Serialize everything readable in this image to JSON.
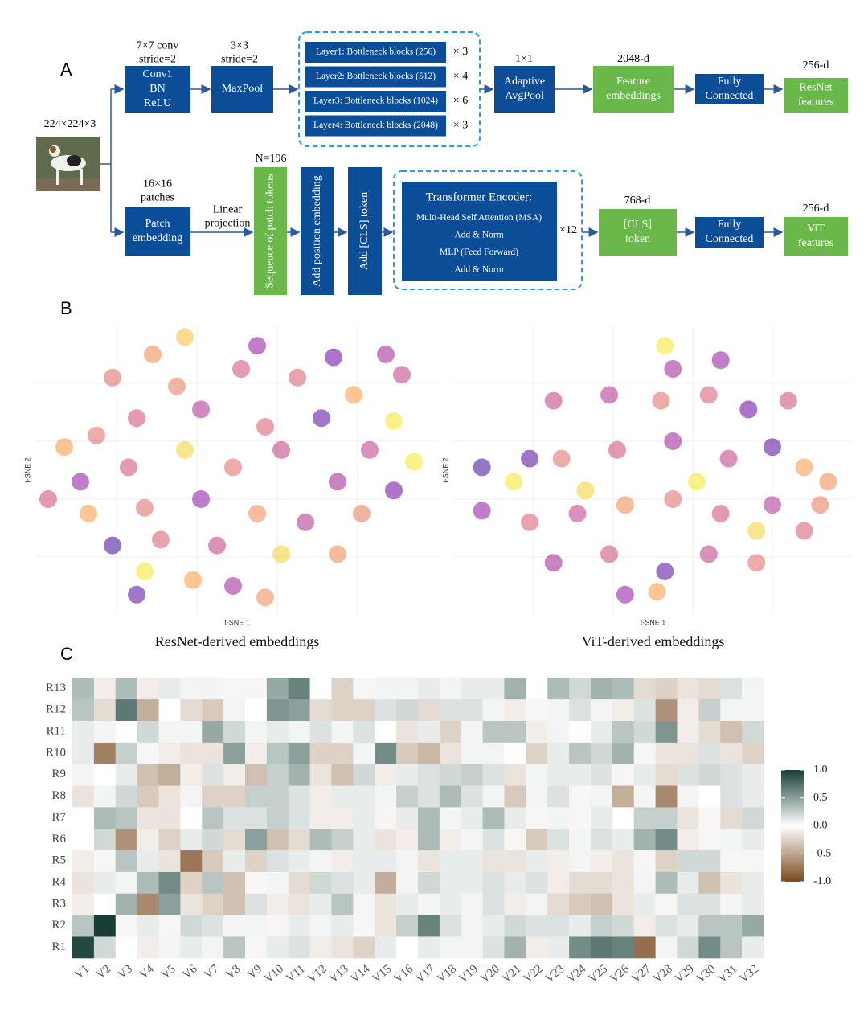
{
  "panel_labels": {
    "a": "A",
    "b": "B",
    "c": "C"
  },
  "diagram": {
    "input_size": "224×224×3",
    "resnet": {
      "conv_params": [
        "7×7 conv",
        "stride=2"
      ],
      "conv_box": [
        "Conv1",
        "BN",
        "ReLU"
      ],
      "pool_params": [
        "3×3",
        "stride=2"
      ],
      "pool_box": "MaxPool",
      "layers": [
        {
          "label": "Layer1: Bottleneck blocks (256)",
          "repeat": "× 3"
        },
        {
          "label": "Layer2: Bottleneck blocks (512)",
          "repeat": "× 4"
        },
        {
          "label": "Layer3: Bottleneck blocks (1024)",
          "repeat": "× 6"
        },
        {
          "label": "Layer4: Bottleneck blocks (2048)",
          "repeat": "× 3"
        }
      ],
      "avgpool_params": "1×1",
      "avgpool_box": [
        "Adaptive",
        "AvgPool"
      ],
      "embed_dim": "2048-d",
      "embed_box": [
        "Feature",
        "embeddings"
      ],
      "fc_box": [
        "Fully",
        "Connected"
      ],
      "out_dim": "256-d",
      "out_box": [
        "ResNet",
        "features"
      ]
    },
    "vit": {
      "patch_params": [
        "16×16",
        "patches"
      ],
      "patch_box": [
        "Patch",
        "embedding"
      ],
      "projection": [
        "Linear",
        "projection"
      ],
      "tokens": "N=196",
      "sequence_box": "Sequence of patch tokens",
      "position_box": "Add position embedding",
      "cls_add_box": "Add [CLS] token",
      "encoder": [
        "Transformer Encoder:",
        "Multi-Head Self Attention (MSA)",
        "Add & Norm",
        "MLP (Feed Forward)",
        "Add & Norm"
      ],
      "encoder_repeat": "×12",
      "embed_dim": "768-d",
      "cls_box": [
        "[CLS]",
        "token"
      ],
      "fc_box": [
        "Fully",
        "Connected"
      ],
      "out_dim": "256-d",
      "out_box": [
        "ViT",
        "features"
      ]
    }
  },
  "chart_data": [
    {
      "type": "scatter",
      "caption": "ResNet-derived embeddings",
      "xlabel": "t-SNE 1",
      "ylabel": "t-SNE 2",
      "colormap": "plasma",
      "xlim": [
        0,
        100
      ],
      "ylim": [
        0,
        100
      ],
      "x": [
        37,
        29,
        55,
        74,
        87,
        91,
        19,
        35,
        51,
        65,
        79,
        89,
        7,
        15,
        25,
        41,
        57,
        71,
        83,
        94,
        11,
        23,
        37,
        49,
        61,
        75,
        89,
        13,
        27,
        41,
        55,
        67,
        81,
        19,
        31,
        45,
        61,
        75,
        27,
        39,
        25,
        57,
        49,
        3
      ],
      "y": [
        96,
        90,
        93,
        89,
        90,
        83,
        82,
        79,
        85,
        82,
        76,
        67,
        58,
        62,
        68,
        71,
        65,
        68,
        57,
        53,
        46,
        51,
        57,
        51,
        57,
        46,
        43,
        35,
        37,
        40,
        35,
        32,
        35,
        24,
        26,
        24,
        21,
        21,
        15,
        12,
        7,
        6,
        10,
        40
      ],
      "color_values": [
        0.85,
        0.7,
        0.3,
        0.2,
        0.35,
        0.45,
        0.6,
        0.65,
        0.5,
        0.55,
        0.75,
        0.95,
        0.75,
        0.6,
        0.5,
        0.4,
        0.55,
        0.15,
        0.45,
        0.95,
        0.3,
        0.5,
        0.9,
        0.6,
        0.45,
        0.35,
        0.2,
        0.75,
        0.6,
        0.3,
        0.7,
        0.4,
        0.65,
        0.1,
        0.55,
        0.45,
        0.9,
        0.7,
        0.95,
        0.75,
        0.15,
        0.7,
        0.35,
        0.5
      ]
    },
    {
      "type": "scatter",
      "caption": "ViT-derived embeddings",
      "xlabel": "t-SNE 1",
      "ylabel": "t-SNE 2",
      "colormap": "plasma",
      "xlim": [
        0,
        100
      ],
      "ylim": [
        0,
        100
      ],
      "x": [
        53,
        55,
        67,
        25,
        39,
        52,
        64,
        74,
        84,
        7,
        15,
        27,
        41,
        55,
        69,
        80,
        88,
        94,
        7,
        19,
        31,
        43,
        55,
        67,
        80,
        92,
        25,
        39,
        53,
        64,
        76,
        43,
        51,
        33,
        61,
        76,
        88,
        19
      ],
      "y": [
        93,
        85,
        88,
        74,
        76,
        74,
        76,
        71,
        74,
        51,
        46,
        54,
        57,
        60,
        54,
        58,
        51,
        46,
        36,
        32,
        35,
        38,
        40,
        35,
        38,
        38,
        18,
        21,
        15,
        21,
        18,
        7,
        8,
        43,
        46,
        29,
        29,
        54
      ],
      "color_values": [
        0.95,
        0.35,
        0.3,
        0.45,
        0.4,
        0.6,
        0.55,
        0.2,
        0.5,
        0.1,
        0.95,
        0.6,
        0.5,
        0.35,
        0.45,
        0.15,
        0.75,
        0.7,
        0.3,
        0.55,
        0.45,
        0.7,
        0.6,
        0.5,
        0.4,
        0.65,
        0.35,
        0.5,
        0.15,
        0.45,
        0.6,
        0.3,
        0.75,
        0.9,
        0.95,
        0.9,
        0.55,
        0.15
      ]
    },
    {
      "type": "heatmap",
      "rows": [
        "R1",
        "R2",
        "R3",
        "R4",
        "R5",
        "R6",
        "R7",
        "R8",
        "R9",
        "R10",
        "R11",
        "R12",
        "R13"
      ],
      "columns": [
        "V1",
        "V2",
        "V3",
        "V4",
        "V5",
        "V6",
        "V7",
        "V8",
        "V9",
        "V10",
        "V11",
        "V12",
        "V13",
        "V14",
        "V15",
        "V16",
        "V17",
        "V18",
        "V19",
        "V20",
        "V21",
        "V22",
        "V23",
        "V24",
        "V25",
        "V26",
        "V27",
        "V28",
        "V29",
        "V30",
        "V31",
        "V32"
      ],
      "values": [
        [
          0.95,
          0.2,
          0,
          -0.1,
          0.05,
          0.1,
          0.05,
          0.3,
          -0.05,
          0.1,
          0.15,
          -0.1,
          -0.15,
          -0.25,
          0.1,
          0,
          0.1,
          0.05,
          0.05,
          0.15,
          0.4,
          -0.1,
          0.1,
          0.6,
          0.7,
          0.65,
          -0.8,
          0.05,
          0.2,
          0.6,
          0.3,
          0.1
        ],
        [
          0.3,
          1.0,
          -0.05,
          0.1,
          -0.05,
          0.2,
          0.15,
          0.05,
          0.05,
          -0.05,
          0.1,
          0.05,
          0.1,
          -0.05,
          -0.15,
          0.25,
          0.65,
          0.15,
          0.05,
          0.1,
          0.2,
          0.15,
          0.15,
          0.1,
          0.25,
          0.2,
          -0.1,
          0.15,
          0.1,
          0.3,
          0.3,
          0.45
        ],
        [
          -0.1,
          0,
          0.4,
          -0.65,
          0.5,
          -0.15,
          -0.25,
          -0.35,
          0.15,
          -0.1,
          -0.15,
          0.1,
          0.3,
          -0.05,
          -0.15,
          0.1,
          0.05,
          0.1,
          0.05,
          0.15,
          -0.1,
          0.05,
          -0.2,
          -0.3,
          -0.35,
          -0.15,
          0.1,
          -0.05,
          0.15,
          0.15,
          0.05,
          0.1
        ],
        [
          -0.15,
          0.1,
          0.05,
          0.35,
          0.6,
          -0.25,
          0.3,
          -0.35,
          -0.05,
          0.05,
          -0.2,
          0.2,
          0.15,
          0.1,
          -0.45,
          0.05,
          0.2,
          0.1,
          0.1,
          0.15,
          0.1,
          0.15,
          -0.1,
          -0.2,
          -0.2,
          -0.15,
          0.05,
          0.35,
          0.1,
          -0.35,
          -0.15,
          0.1
        ],
        [
          -0.1,
          -0.05,
          0.3,
          0.1,
          -0.15,
          -0.75,
          -0.3,
          0.1,
          -0.25,
          0.15,
          0.1,
          0.05,
          -0.1,
          0.1,
          0.1,
          0.05,
          -0.15,
          0.1,
          0.1,
          -0.15,
          -0.15,
          0.1,
          -0.1,
          0.05,
          -0.1,
          -0.15,
          -0.05,
          -0.25,
          0.2,
          0.2,
          -0.05,
          -0.05
        ],
        [
          0,
          0.2,
          -0.6,
          -0.1,
          -0.25,
          0.1,
          0.2,
          -0.2,
          0.5,
          -0.35,
          -0.2,
          0.35,
          0.25,
          0.1,
          -0.15,
          -0.1,
          0.35,
          -0.1,
          0.05,
          0.15,
          -0.05,
          -0.3,
          0.15,
          0.05,
          0.15,
          0.1,
          0.4,
          0.6,
          -0.1,
          -0.05,
          0.05,
          0.1
        ],
        [
          0,
          0.35,
          0.3,
          -0.15,
          -0.15,
          0,
          0.3,
          0.15,
          0.15,
          0.25,
          0.15,
          -0.1,
          -0.1,
          0.1,
          -0.05,
          0.1,
          0.35,
          0.05,
          0.1,
          0.35,
          0.1,
          -0.05,
          0.05,
          -0.05,
          0.1,
          0,
          0.25,
          0.25,
          -0.15,
          -0.05,
          -0.2,
          0.2
        ],
        [
          -0.15,
          0.05,
          0.2,
          -0.3,
          -0.15,
          0.05,
          -0.25,
          -0.25,
          0.25,
          0.25,
          0.15,
          -0.1,
          0.1,
          0.1,
          0.05,
          0.25,
          0.15,
          0.35,
          0.15,
          0.05,
          -0.3,
          0.05,
          0.15,
          -0.05,
          0.05,
          -0.45,
          0.05,
          -0.65,
          0.05,
          0,
          0.15,
          0.1
        ],
        [
          0.05,
          0,
          0.1,
          -0.35,
          -0.45,
          -0.1,
          0.15,
          -0.1,
          -0.35,
          0.25,
          0.4,
          -0.15,
          -0.35,
          0.2,
          -0.1,
          0.1,
          0.15,
          0.2,
          0.25,
          0.15,
          -0.15,
          0.05,
          0.1,
          0.1,
          0.15,
          -0.05,
          0.1,
          -0.2,
          0.15,
          0.2,
          0.15,
          0.1
        ],
        [
          0.1,
          -0.7,
          0.25,
          -0.05,
          -0.1,
          -0.15,
          -0.15,
          0.5,
          -0.1,
          0.3,
          0.5,
          -0.25,
          -0.25,
          0.05,
          0.6,
          -0.3,
          -0.4,
          -0.15,
          0.05,
          0.05,
          0,
          -0.25,
          0.1,
          0.3,
          0.2,
          0.4,
          -0.05,
          -0.15,
          -0.15,
          0.15,
          -0.15,
          -0.25
        ],
        [
          0.1,
          0.05,
          0,
          0.2,
          0.05,
          0.05,
          0.45,
          0.2,
          0.05,
          0.1,
          0.05,
          0.15,
          0.05,
          0.15,
          0,
          -0.15,
          0.1,
          -0.25,
          0.05,
          0.3,
          0.3,
          -0.1,
          0.05,
          0,
          0.1,
          0.3,
          0.2,
          0.55,
          -0.1,
          -0.2,
          -0.35,
          0.2
        ],
        [
          0.3,
          -0.2,
          0.7,
          -0.45,
          0,
          -0.2,
          -0.3,
          0.05,
          0,
          0.55,
          0.5,
          -0.2,
          -0.25,
          -0.25,
          0.15,
          0.2,
          -0.2,
          0.15,
          0.15,
          0.05,
          -0.1,
          -0.05,
          0.05,
          0.15,
          0.05,
          -0.1,
          0.15,
          -0.6,
          -0.1,
          0.25,
          0.05,
          0.05
        ],
        [
          0.35,
          -0.1,
          0.35,
          -0.1,
          0.1,
          0.05,
          0.05,
          -0.05,
          -0.05,
          0.45,
          0.65,
          0,
          -0.25,
          -0.05,
          0.05,
          0.05,
          0.1,
          0.05,
          0.1,
          0.1,
          0.4,
          0,
          0.35,
          0.2,
          0.4,
          0.35,
          -0.2,
          -0.25,
          -0.15,
          -0.2,
          0.15,
          0.05
        ]
      ],
      "colorbar": {
        "lim": [
          -1,
          1
        ],
        "colors": [
          "#7a4a1f",
          "#ffffff",
          "#173f38"
        ],
        "ticks": [
          {
            "value": 1,
            "label": "1.0"
          },
          0.5,
          {
            "value": 0,
            "label": "0.0"
          },
          -0.5,
          {
            "value": -1,
            "label": "-1.0"
          }
        ]
      }
    }
  ]
}
